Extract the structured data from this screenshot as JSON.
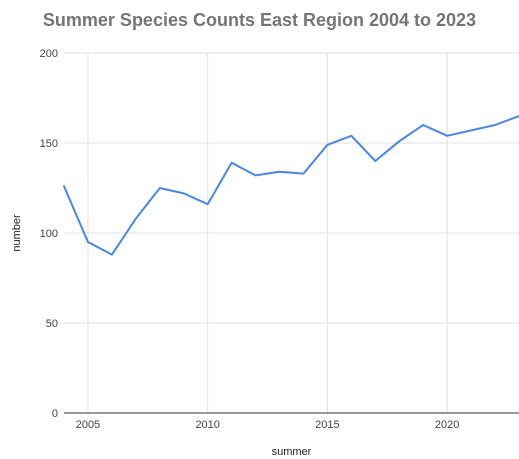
{
  "chart_data": {
    "type": "line",
    "title": "Summer Species Counts East Region 2004 to 2023",
    "xlabel": "summer",
    "ylabel": "number",
    "x": [
      2004,
      2005,
      2006,
      2007,
      2008,
      2009,
      2010,
      2011,
      2012,
      2013,
      2014,
      2015,
      2016,
      2017,
      2018,
      2019,
      2020,
      2021,
      2022,
      2023
    ],
    "series": [
      {
        "values": [
          126,
          95,
          88,
          108,
          125,
          122,
          116,
          139,
          132,
          134,
          133,
          149,
          154,
          140,
          151,
          160,
          154,
          157,
          160,
          165
        ],
        "color": "#4a86e8"
      }
    ],
    "xlim": [
      2004,
      2023
    ],
    "ylim": [
      0,
      200
    ],
    "x_ticks": [
      "2005",
      "2010",
      "2015",
      "2020"
    ],
    "y_ticks": [
      "0",
      "50",
      "100",
      "150",
      "200"
    ],
    "grid": true,
    "legend": "none"
  }
}
